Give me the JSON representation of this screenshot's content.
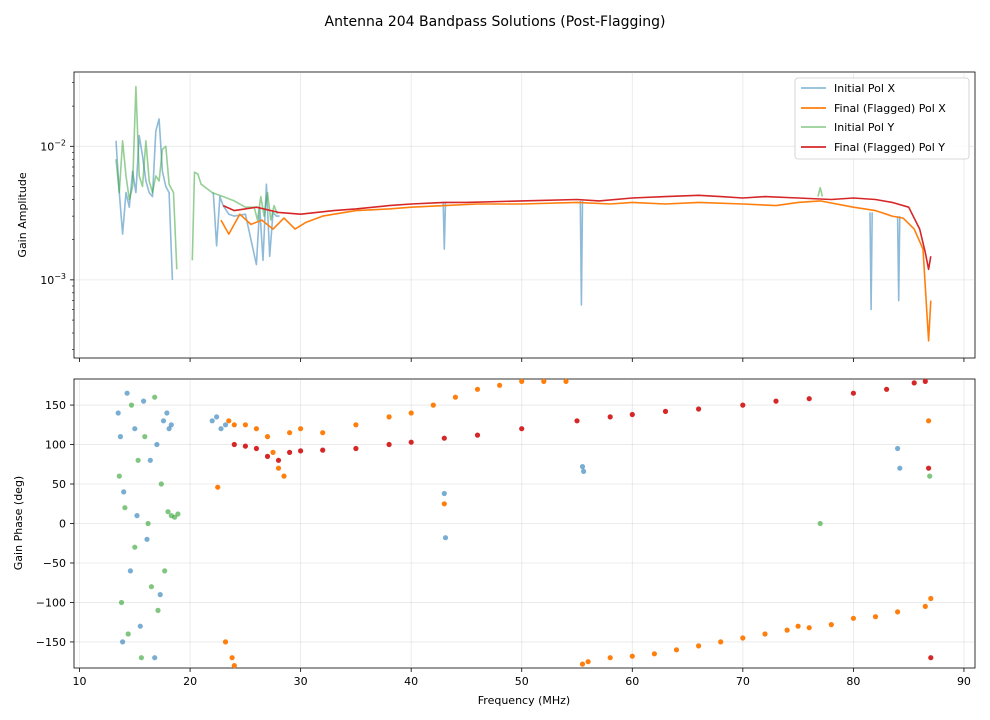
{
  "title": "Antenna 204 Bandpass Solutions (Post-Flagging)",
  "colors": {
    "initial_x": "#1f77b4",
    "final_x": "#ff7f0e",
    "initial_y": "#2ca02c",
    "final_y": "#d62728"
  },
  "chart_data": [
    {
      "type": "line",
      "yscale": "log",
      "ylabel": "Gain Amplitude",
      "xlim": [
        9.5,
        91
      ],
      "ylim": [
        0.00026,
        0.036
      ],
      "yticks": [
        {
          "value": 0.01,
          "base": "10",
          "exp": "−2"
        },
        {
          "value": 0.001,
          "base": "10",
          "exp": "−3"
        }
      ],
      "legend": {
        "position": "top-right",
        "entries": [
          {
            "label": "Initial Pol X",
            "color": "#1f77b4"
          },
          {
            "label": "Final (Flagged) Pol X",
            "color": "#ff7f0e"
          },
          {
            "label": "Initial Pol Y",
            "color": "#2ca02c"
          },
          {
            "label": "Final (Flagged) Pol Y",
            "color": "#d62728"
          }
        ]
      },
      "series": [
        {
          "name": "Initial Pol X",
          "color": "#1f77b4",
          "alpha": 0.5,
          "x": [
            13.3,
            13.6,
            13.9,
            14.2,
            14.5,
            14.8,
            15.1,
            15.4,
            15.7,
            16.0,
            16.3,
            16.6,
            16.9,
            17.2,
            17.5,
            17.8,
            18.1,
            18.4,
            null,
            22.1,
            22.4,
            22.7,
            23.0,
            23.5,
            24.0,
            25.0,
            26.0,
            26.3,
            26.6,
            26.9,
            27.2,
            27.5,
            27.8,
            28.1,
            null,
            42.9,
            43.0,
            43.1,
            null,
            55.3,
            55.4,
            55.5,
            null,
            81.5,
            81.6,
            81.7,
            null,
            84.0,
            84.1,
            84.2
          ],
          "y": [
            0.011,
            0.0045,
            0.0022,
            0.0045,
            0.0035,
            0.0065,
            0.0045,
            0.012,
            0.0085,
            0.0055,
            0.0045,
            0.0042,
            0.013,
            0.016,
            0.0065,
            0.005,
            0.0045,
            0.001,
            null,
            0.0045,
            0.0018,
            0.0042,
            0.0036,
            0.0031,
            0.003,
            0.0031,
            0.0013,
            0.0035,
            0.0014,
            0.0052,
            0.0015,
            0.0032,
            0.003,
            0.003,
            null,
            0.0038,
            0.0017,
            0.0038,
            null,
            0.0039,
            0.00065,
            0.0039,
            null,
            0.0032,
            0.0006,
            0.0032,
            null,
            0.003,
            0.0007,
            0.003
          ]
        },
        {
          "name": "Final (Flagged) Pol X",
          "color": "#ff7f0e",
          "x": [
            22.8,
            23.5,
            24.5,
            25.5,
            26.5,
            27.5,
            28.5,
            29.5,
            30.5,
            32,
            35,
            38,
            40,
            43,
            46,
            50,
            55,
            58,
            60,
            63,
            66,
            70,
            73,
            75,
            77,
            80,
            82,
            83.5,
            84.5,
            85.5,
            86.3,
            86.8,
            87.0
          ],
          "y": [
            0.0028,
            0.0022,
            0.0031,
            0.0026,
            0.0028,
            0.0024,
            0.0029,
            0.0024,
            0.0027,
            0.003,
            0.0033,
            0.0034,
            0.0035,
            0.0036,
            0.0037,
            0.0037,
            0.0038,
            0.0037,
            0.0038,
            0.0037,
            0.0038,
            0.0037,
            0.0036,
            0.0038,
            0.0039,
            0.0035,
            0.0033,
            0.003,
            0.0029,
            0.0024,
            0.0017,
            0.00035,
            0.0007
          ]
        },
        {
          "name": "Initial Pol Y",
          "color": "#2ca02c",
          "alpha": 0.5,
          "x": [
            13.3,
            13.6,
            13.9,
            14.2,
            14.5,
            14.8,
            15.1,
            15.4,
            15.7,
            16.0,
            16.3,
            16.6,
            16.9,
            17.2,
            17.5,
            17.8,
            18.1,
            18.5,
            18.8,
            null,
            20.2,
            20.4,
            20.7,
            21.0,
            22.0,
            23.0,
            24.0,
            25.0,
            25.8,
            26.1,
            26.4,
            26.7,
            27.0,
            27.3,
            27.6,
            27.9,
            null,
            76.8,
            77.0,
            77.2
          ],
          "y": [
            0.008,
            0.0045,
            0.011,
            0.006,
            0.004,
            0.005,
            0.028,
            0.006,
            0.005,
            0.011,
            0.0055,
            0.0045,
            0.006,
            0.0055,
            0.0095,
            0.01,
            0.0052,
            0.0045,
            0.0012,
            null,
            0.0014,
            0.0064,
            0.0062,
            0.0052,
            0.0045,
            0.0042,
            0.0039,
            0.0035,
            0.0035,
            0.0028,
            0.0042,
            0.003,
            0.0045,
            0.0028,
            0.0036,
            0.0031,
            null,
            0.0042,
            0.0049,
            0.0042
          ]
        },
        {
          "name": "Final (Flagged) Pol Y",
          "color": "#d62728",
          "x": [
            23.0,
            24,
            26,
            28,
            30,
            33,
            35,
            38,
            40,
            43,
            45,
            50,
            55,
            57,
            60,
            63,
            66,
            68,
            70,
            72,
            75,
            78,
            80,
            82,
            83.5,
            85,
            86,
            86.5,
            86.8,
            87.0
          ],
          "y": [
            0.0036,
            0.0033,
            0.0035,
            0.0032,
            0.0031,
            0.0033,
            0.0034,
            0.0036,
            0.0037,
            0.0038,
            0.0038,
            0.0039,
            0.004,
            0.0039,
            0.0041,
            0.0042,
            0.0043,
            0.0042,
            0.0041,
            0.0042,
            0.0041,
            0.004,
            0.0041,
            0.004,
            0.0038,
            0.0035,
            0.0024,
            0.0016,
            0.0012,
            0.0015
          ]
        }
      ]
    },
    {
      "type": "scatter",
      "ylabel": "Gain Phase (deg)",
      "xlabel": "Frequency (MHz)",
      "xlim": [
        9.5,
        91
      ],
      "ylim": [
        -183,
        183
      ],
      "xticks": [
        10,
        20,
        30,
        40,
        50,
        60,
        70,
        80,
        90
      ],
      "yticks": [
        -150,
        -100,
        -50,
        0,
        50,
        100,
        150
      ],
      "series": [
        {
          "name": "Initial Pol X",
          "color": "#1f77b4",
          "alpha": 0.6,
          "x": [
            13.5,
            13.7,
            13.9,
            14.0,
            14.3,
            14.6,
            15.0,
            15.2,
            15.5,
            15.8,
            16.1,
            16.4,
            16.8,
            17.0,
            17.3,
            17.6,
            17.9,
            18.1,
            18.3,
            22.0,
            22.4,
            22.8,
            23.2,
            43.0,
            43.1,
            55.5,
            55.6,
            84.0,
            84.2
          ],
          "y": [
            140,
            110,
            -150,
            40,
            165,
            -60,
            120,
            10,
            -130,
            155,
            -20,
            80,
            -170,
            100,
            -90,
            130,
            140,
            120,
            125,
            130,
            135,
            120,
            125,
            38,
            -18,
            72,
            66,
            95,
            70
          ]
        },
        {
          "name": "Final Pol X",
          "color": "#ff7f0e",
          "x": [
            22.5,
            23.5,
            24,
            25,
            26,
            27,
            27.5,
            28,
            28.5,
            29,
            30,
            32,
            35,
            38,
            40,
            42,
            44,
            46,
            48,
            50,
            52,
            54,
            56,
            58,
            60,
            62,
            64,
            66,
            68,
            70,
            72,
            74,
            75,
            76,
            78,
            80,
            82,
            84,
            86.5,
            87,
            43,
            55.5,
            23.2,
            23.8,
            24.0,
            86.8
          ],
          "y": [
            46,
            130,
            125,
            125,
            120,
            110,
            90,
            70,
            60,
            115,
            120,
            115,
            125,
            135,
            140,
            150,
            160,
            170,
            175,
            180,
            180,
            180,
            -175,
            -170,
            -168,
            -165,
            -160,
            -155,
            -150,
            -145,
            -140,
            -135,
            -130,
            -132,
            -128,
            -120,
            -118,
            -112,
            -105,
            -95,
            25,
            -178,
            -150,
            -170,
            -180,
            130
          ]
        },
        {
          "name": "Initial Pol Y",
          "color": "#2ca02c",
          "alpha": 0.6,
          "x": [
            13.6,
            13.8,
            14.1,
            14.4,
            14.7,
            15.0,
            15.3,
            15.6,
            15.9,
            16.2,
            16.5,
            16.8,
            17.1,
            17.4,
            17.7,
            18.0,
            18.3,
            18.6,
            18.9,
            77.0,
            86.9
          ],
          "y": [
            60,
            -100,
            20,
            -140,
            150,
            -30,
            80,
            -170,
            110,
            0,
            -80,
            160,
            -110,
            50,
            -60,
            15,
            10,
            8,
            12,
            0,
            60
          ]
        },
        {
          "name": "Final Pol Y",
          "color": "#d62728",
          "x": [
            24,
            25,
            26,
            27,
            28,
            29,
            30,
            32,
            35,
            38,
            40,
            43,
            46,
            50,
            55,
            58,
            60,
            63,
            66,
            70,
            73,
            76,
            80,
            83,
            85.5,
            86.5,
            86.8,
            87.0
          ],
          "y": [
            100,
            98,
            95,
            85,
            80,
            90,
            92,
            93,
            95,
            100,
            103,
            108,
            112,
            120,
            130,
            135,
            138,
            142,
            145,
            150,
            155,
            158,
            165,
            170,
            178,
            180,
            70,
            -170
          ]
        }
      ]
    }
  ]
}
